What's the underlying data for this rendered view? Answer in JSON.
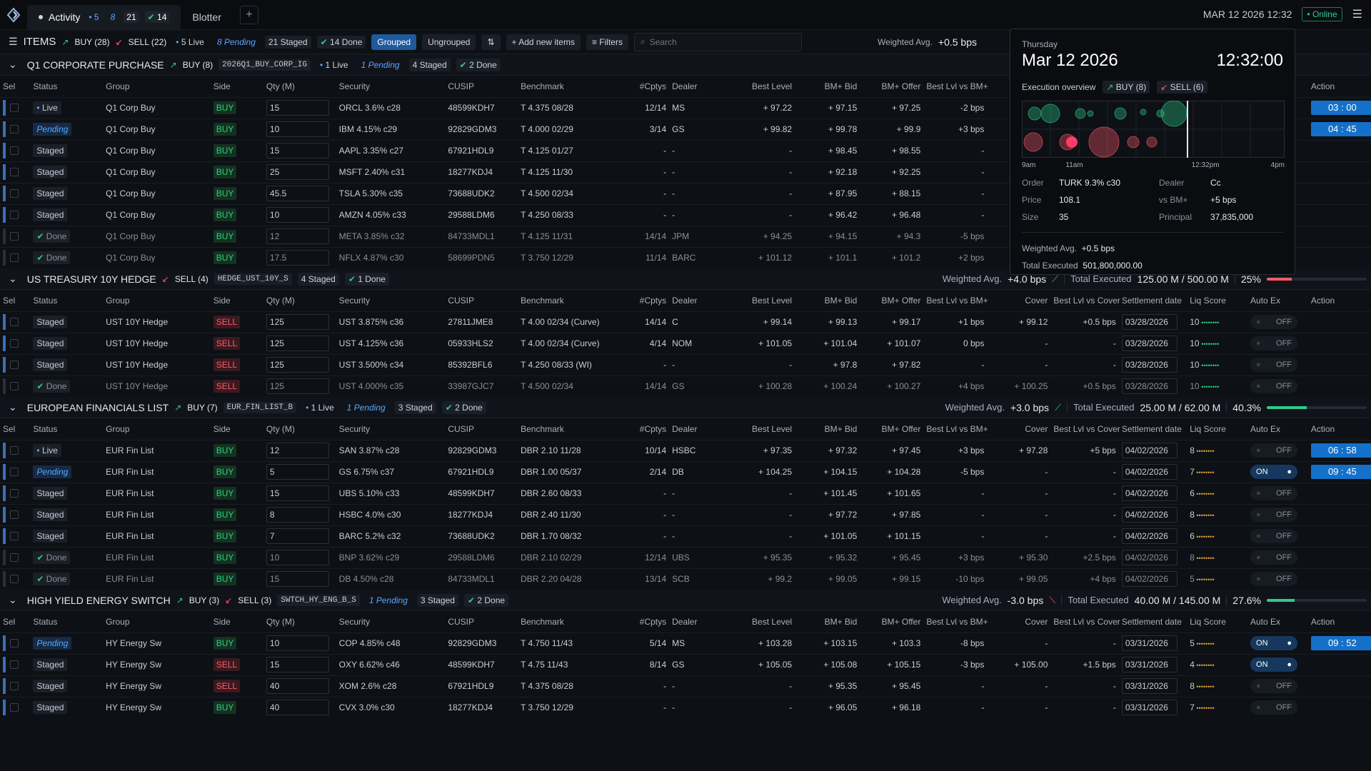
{
  "topbar": {
    "tab1": "Activity",
    "c5": "5",
    "c8": "8",
    "c21": "21",
    "c14": "14",
    "tab2": "Blotter",
    "clock": "MAR 12 2026 12:32",
    "online": "Online"
  },
  "toolbar": {
    "items": "ITEMS",
    "buy": "BUY (28)",
    "sell": "SELL (22)",
    "live": "5 Live",
    "pending": "8 Pending",
    "staged": "21 Staged",
    "done": "14 Done",
    "grouped": "Grouped",
    "ungrouped": "Ungrouped",
    "add": "Add new items",
    "filters": "Filters",
    "search": "Search",
    "wavg_label": "Weighted Avg.",
    "wavg_val": "+0.5 bps"
  },
  "headers": {
    "sel": "Sel",
    "status": "Status",
    "group": "Group",
    "side": "Side",
    "qty": "Qty (M)",
    "security": "Security",
    "cusip": "CUSIP",
    "bench": "Benchmark",
    "cptys": "#Cptys",
    "dealer": "Dealer",
    "best": "Best Level",
    "bid": "BM+ Bid",
    "offer": "BM+ Offer",
    "bestvs": "Best Lvl vs BM+",
    "cover": "Cover",
    "bestcov": "Best Lvl vs Cover",
    "settle": "Settlement date",
    "liq": "Liq Score",
    "autoex": "Auto Ex",
    "action": "Action"
  },
  "groups": [
    {
      "name": "Q1 CORPORATE PURCHASE",
      "buy": "BUY (8)",
      "sell": "",
      "code": "2026Q1_BUY_CORP_IG",
      "live": "1 Live",
      "pending": "1 Pending",
      "staged": "4 Staged",
      "done": "2 Done",
      "wavg": "",
      "trend": "",
      "total": "",
      "pct": 0,
      "pct_text": "",
      "color": "",
      "rows": [
        [
          "Live",
          "Q1 Corp Buy",
          "BUY",
          "15",
          "ORCL 3.6% c28",
          "48599KDH7",
          "T 4.375 08/28",
          "12/14",
          "MS",
          "+ 97.22",
          "+ 97.15",
          "+ 97.25",
          "-2 bps",
          "",
          "",
          "",
          "",
          "",
          "03 : 00"
        ],
        [
          "Pending",
          "Q1 Corp Buy",
          "BUY",
          "10",
          "IBM 4.15% c29",
          "92829GDM3",
          "T 4.000 02/29",
          "3/14",
          "GS",
          "+ 99.82",
          "+ 99.78",
          "+ 99.9",
          "+3 bps",
          "",
          "",
          "",
          "",
          "",
          "04 : 45"
        ],
        [
          "Staged",
          "Q1 Corp Buy",
          "BUY",
          "15",
          "AAPL 3.35% c27",
          "67921HDL9",
          "T 4.125 01/27",
          "-",
          "-",
          "-",
          "+ 98.45",
          "+ 98.55",
          "-",
          "",
          "",
          "",
          "",
          "",
          ""
        ],
        [
          "Staged",
          "Q1 Corp Buy",
          "BUY",
          "25",
          "MSFT 2.40% c31",
          "18277KDJ4",
          "T 4.125 11/30",
          "-",
          "-",
          "-",
          "+ 92.18",
          "+ 92.25",
          "-",
          "",
          "",
          "",
          "",
          "",
          ""
        ],
        [
          "Staged",
          "Q1 Corp Buy",
          "BUY",
          "45.5",
          "TSLA 5.30% c35",
          "73688UDK2",
          "T 4.500 02/34",
          "-",
          "-",
          "-",
          "+ 87.95",
          "+ 88.15",
          "-",
          "",
          "",
          "",
          "",
          "",
          ""
        ],
        [
          "Staged",
          "Q1 Corp Buy",
          "BUY",
          "10",
          "AMZN 4.05% c33",
          "29588LDM6",
          "T 4.250 08/33",
          "-",
          "-",
          "-",
          "+ 96.42",
          "+ 96.48",
          "-",
          "",
          "",
          "",
          "",
          "",
          ""
        ],
        [
          "Done",
          "Q1 Corp Buy",
          "BUY",
          "12",
          "META 3.85% c32",
          "84733MDL1",
          "T 4.125 11/31",
          "14/14",
          "JPM",
          "+ 94.25",
          "+ 94.15",
          "+ 94.3",
          "-5 bps",
          "",
          "",
          "",
          "",
          "",
          ""
        ],
        [
          "Done",
          "Q1 Corp Buy",
          "BUY",
          "17.5",
          "NFLX 4.87% c30",
          "58699PDN5",
          "T 3.750 12/29",
          "11/14",
          "BARC",
          "+ 101.12",
          "+ 101.1",
          "+ 101.2",
          "+2 bps",
          "",
          "",
          "",
          "",
          "",
          ""
        ]
      ]
    },
    {
      "name": "US TREASURY 10Y HEDGE",
      "buy": "",
      "sell": "SELL (4)",
      "code": "HEDGE_UST_10Y_S",
      "live": "",
      "pending": "",
      "staged": "4 Staged",
      "done": "1 Done",
      "wavg": "+4.0 bps",
      "trend": "up",
      "total": "125.00 M / 500.00 M",
      "pct": 25,
      "pct_text": "25%",
      "color": "#ff5a6a",
      "rows": [
        [
          "Staged",
          "UST 10Y Hedge",
          "SELL",
          "125",
          "UST 3.875% c36",
          "27811JME8",
          "T 4.00 02/34 (Curve)",
          "14/14",
          "C",
          "+ 99.14",
          "+ 99.13",
          "+ 99.17",
          "+1 bps",
          "+ 99.12",
          "+0.5 bps",
          "03/28/2026",
          "10",
          "OFF",
          ""
        ],
        [
          "Staged",
          "UST 10Y Hedge",
          "SELL",
          "125",
          "UST 4.125% c36",
          "05933HLS2",
          "T 4.00 02/34 (Curve)",
          "4/14",
          "NOM",
          "+ 101.05",
          "+ 101.04",
          "+ 101.07",
          "0 bps",
          "-",
          "-",
          "03/28/2026",
          "10",
          "OFF",
          ""
        ],
        [
          "Staged",
          "UST 10Y Hedge",
          "SELL",
          "125",
          "UST 3.500% c34",
          "85392BFL6",
          "T 4.250 08/33 (WI)",
          "-",
          "-",
          "-",
          "+ 97.8",
          "+ 97.82",
          "-",
          "-",
          "-",
          "03/28/2026",
          "10",
          "OFF",
          ""
        ],
        [
          "Done",
          "UST 10Y Hedge",
          "SELL",
          "125",
          "UST 4.000% c35",
          "33987GJC7",
          "T 4.500 02/34",
          "14/14",
          "GS",
          "+ 100.28",
          "+ 100.24",
          "+ 100.27",
          "+4 bps",
          "+ 100.25",
          "+0.5 bps",
          "03/28/2026",
          "10",
          "OFF",
          ""
        ]
      ]
    },
    {
      "name": "EUROPEAN FINANCIALS LIST",
      "buy": "BUY (7)",
      "sell": "",
      "code": "EUR_FIN_LIST_B",
      "live": "1 Live",
      "pending": "1 Pending",
      "staged": "3 Staged",
      "done": "2 Done",
      "wavg": "+3.0 bps",
      "trend": "up",
      "total": "25.00 M / 62.00 M",
      "pct": 40.3,
      "pct_text": "40.3%",
      "color": "#2ecc8a",
      "rows": [
        [
          "Live",
          "EUR Fin List",
          "BUY",
          "12",
          "SAN 3.87% c28",
          "92829GDM3",
          "DBR 2.10 11/28",
          "10/14",
          "HSBC",
          "+ 97.35",
          "+ 97.32",
          "+ 97.45",
          "+3 bps",
          "+ 97.28",
          "+5 bps",
          "04/02/2026",
          "8",
          "OFF",
          "06 : 58"
        ],
        [
          "Pending",
          "EUR Fin List",
          "BUY",
          "5",
          "GS 6.75% c37",
          "67921HDL9",
          "DBR 1.00 05/37",
          "2/14",
          "DB",
          "+ 104.25",
          "+ 104.15",
          "+ 104.28",
          "-5 bps",
          "-",
          "-",
          "04/02/2026",
          "7",
          "ON",
          "09 : 45"
        ],
        [
          "Staged",
          "EUR Fin List",
          "BUY",
          "15",
          "UBS 5.10% c33",
          "48599KDH7",
          "DBR 2.60 08/33",
          "-",
          "-",
          "-",
          "+ 101.45",
          "+ 101.65",
          "-",
          "-",
          "-",
          "04/02/2026",
          "6",
          "OFF",
          ""
        ],
        [
          "Staged",
          "EUR Fin List",
          "BUY",
          "8",
          "HSBC 4.0% c30",
          "18277KDJ4",
          "DBR 2.40 11/30",
          "-",
          "-",
          "-",
          "+ 97.72",
          "+ 97.85",
          "-",
          "-",
          "-",
          "04/02/2026",
          "8",
          "OFF",
          ""
        ],
        [
          "Staged",
          "EUR Fin List",
          "BUY",
          "7",
          "BARC 5.2% c32",
          "73688UDK2",
          "DBR 1.70 08/32",
          "-",
          "-",
          "-",
          "+ 101.05",
          "+ 101.15",
          "-",
          "-",
          "-",
          "04/02/2026",
          "6",
          "OFF",
          ""
        ],
        [
          "Done",
          "EUR Fin List",
          "BUY",
          "10",
          "BNP 3.62% c29",
          "29588LDM6",
          "DBR 2.10 02/29",
          "12/14",
          "UBS",
          "+ 95.35",
          "+ 95.32",
          "+ 95.45",
          "+3 bps",
          "+ 95.30",
          "+2.5 bps",
          "04/02/2026",
          "8",
          "OFF",
          ""
        ],
        [
          "Done",
          "EUR Fin List",
          "BUY",
          "15",
          "DB 4.50% c28",
          "84733MDL1",
          "DBR 2.20 04/28",
          "13/14",
          "SCB",
          "+ 99.2",
          "+ 99.05",
          "+ 99.15",
          "-10 bps",
          "+ 99.05",
          "+4 bps",
          "04/02/2026",
          "5",
          "OFF",
          ""
        ]
      ]
    },
    {
      "name": "HIGH YIELD ENERGY SWITCH",
      "buy": "BUY (3)",
      "sell": "SELL (3)",
      "code": "SWTCH_HY_ENG_B_S",
      "live": "",
      "pending": "1 Pending",
      "staged": "3 Staged",
      "done": "2 Done",
      "wavg": "-3.0 bps",
      "trend": "down",
      "total": "40.00 M / 145.00 M",
      "pct": 27.6,
      "pct_text": "27.6%",
      "color": "#2ecc8a",
      "rows": [
        [
          "Pending",
          "HY Energy Sw",
          "BUY",
          "10",
          "COP 4.85% c48",
          "92829GDM3",
          "T 4.750 11/43",
          "5/14",
          "MS",
          "+ 103.28",
          "+ 103.15",
          "+ 103.3",
          "-8 bps",
          "-",
          "-",
          "03/31/2026",
          "5",
          "ON",
          "09 : 52"
        ],
        [
          "Staged",
          "HY Energy Sw",
          "SELL",
          "15",
          "OXY 6.62% c46",
          "48599KDH7",
          "T 4.75 11/43",
          "8/14",
          "GS",
          "+ 105.05",
          "+ 105.08",
          "+ 105.15",
          "-3 bps",
          "+ 105.00",
          "+1.5 bps",
          "03/31/2026",
          "4",
          "ON",
          ""
        ],
        [
          "Staged",
          "HY Energy Sw",
          "SELL",
          "40",
          "XOM 2.6% c28",
          "67921HDL9",
          "T 4.375 08/28",
          "-",
          "-",
          "-",
          "+ 95.35",
          "+ 95.45",
          "-",
          "-",
          "-",
          "03/31/2026",
          "8",
          "OFF",
          ""
        ],
        [
          "Staged",
          "HY Energy Sw",
          "BUY",
          "40",
          "CVX 3.0% c30",
          "18277KDJ4",
          "T 3.750 12/29",
          "-",
          "-",
          "-",
          "+ 96.05",
          "+ 96.18",
          "-",
          "-",
          "-",
          "03/31/2026",
          "7",
          "OFF",
          ""
        ]
      ]
    }
  ],
  "popup": {
    "day": "Thursday",
    "date": "Mar 12 2026",
    "time": "12:32:00",
    "overview": "Execution overview",
    "buy": "BUY (8)",
    "sell": "SELL (6)",
    "axis": [
      "9am",
      "11am",
      "12:32pm",
      "4pm"
    ],
    "k_order": "Order",
    "v_order": "TURK 9.3% c30",
    "k_dealer": "Dealer",
    "v_dealer": "Cc",
    "k_price": "Price",
    "v_price": "108.1",
    "k_vs": "vs BM+",
    "v_vs": "+5 bps",
    "k_size": "Size",
    "v_size": "35",
    "k_principal": "Principal",
    "v_principal": "37,835,000",
    "wavg_label": "Weighted Avg.",
    "wavg_val": "+0.5 bps",
    "total_label": "Total Executed",
    "total_val": "501,800,000.00"
  }
}
